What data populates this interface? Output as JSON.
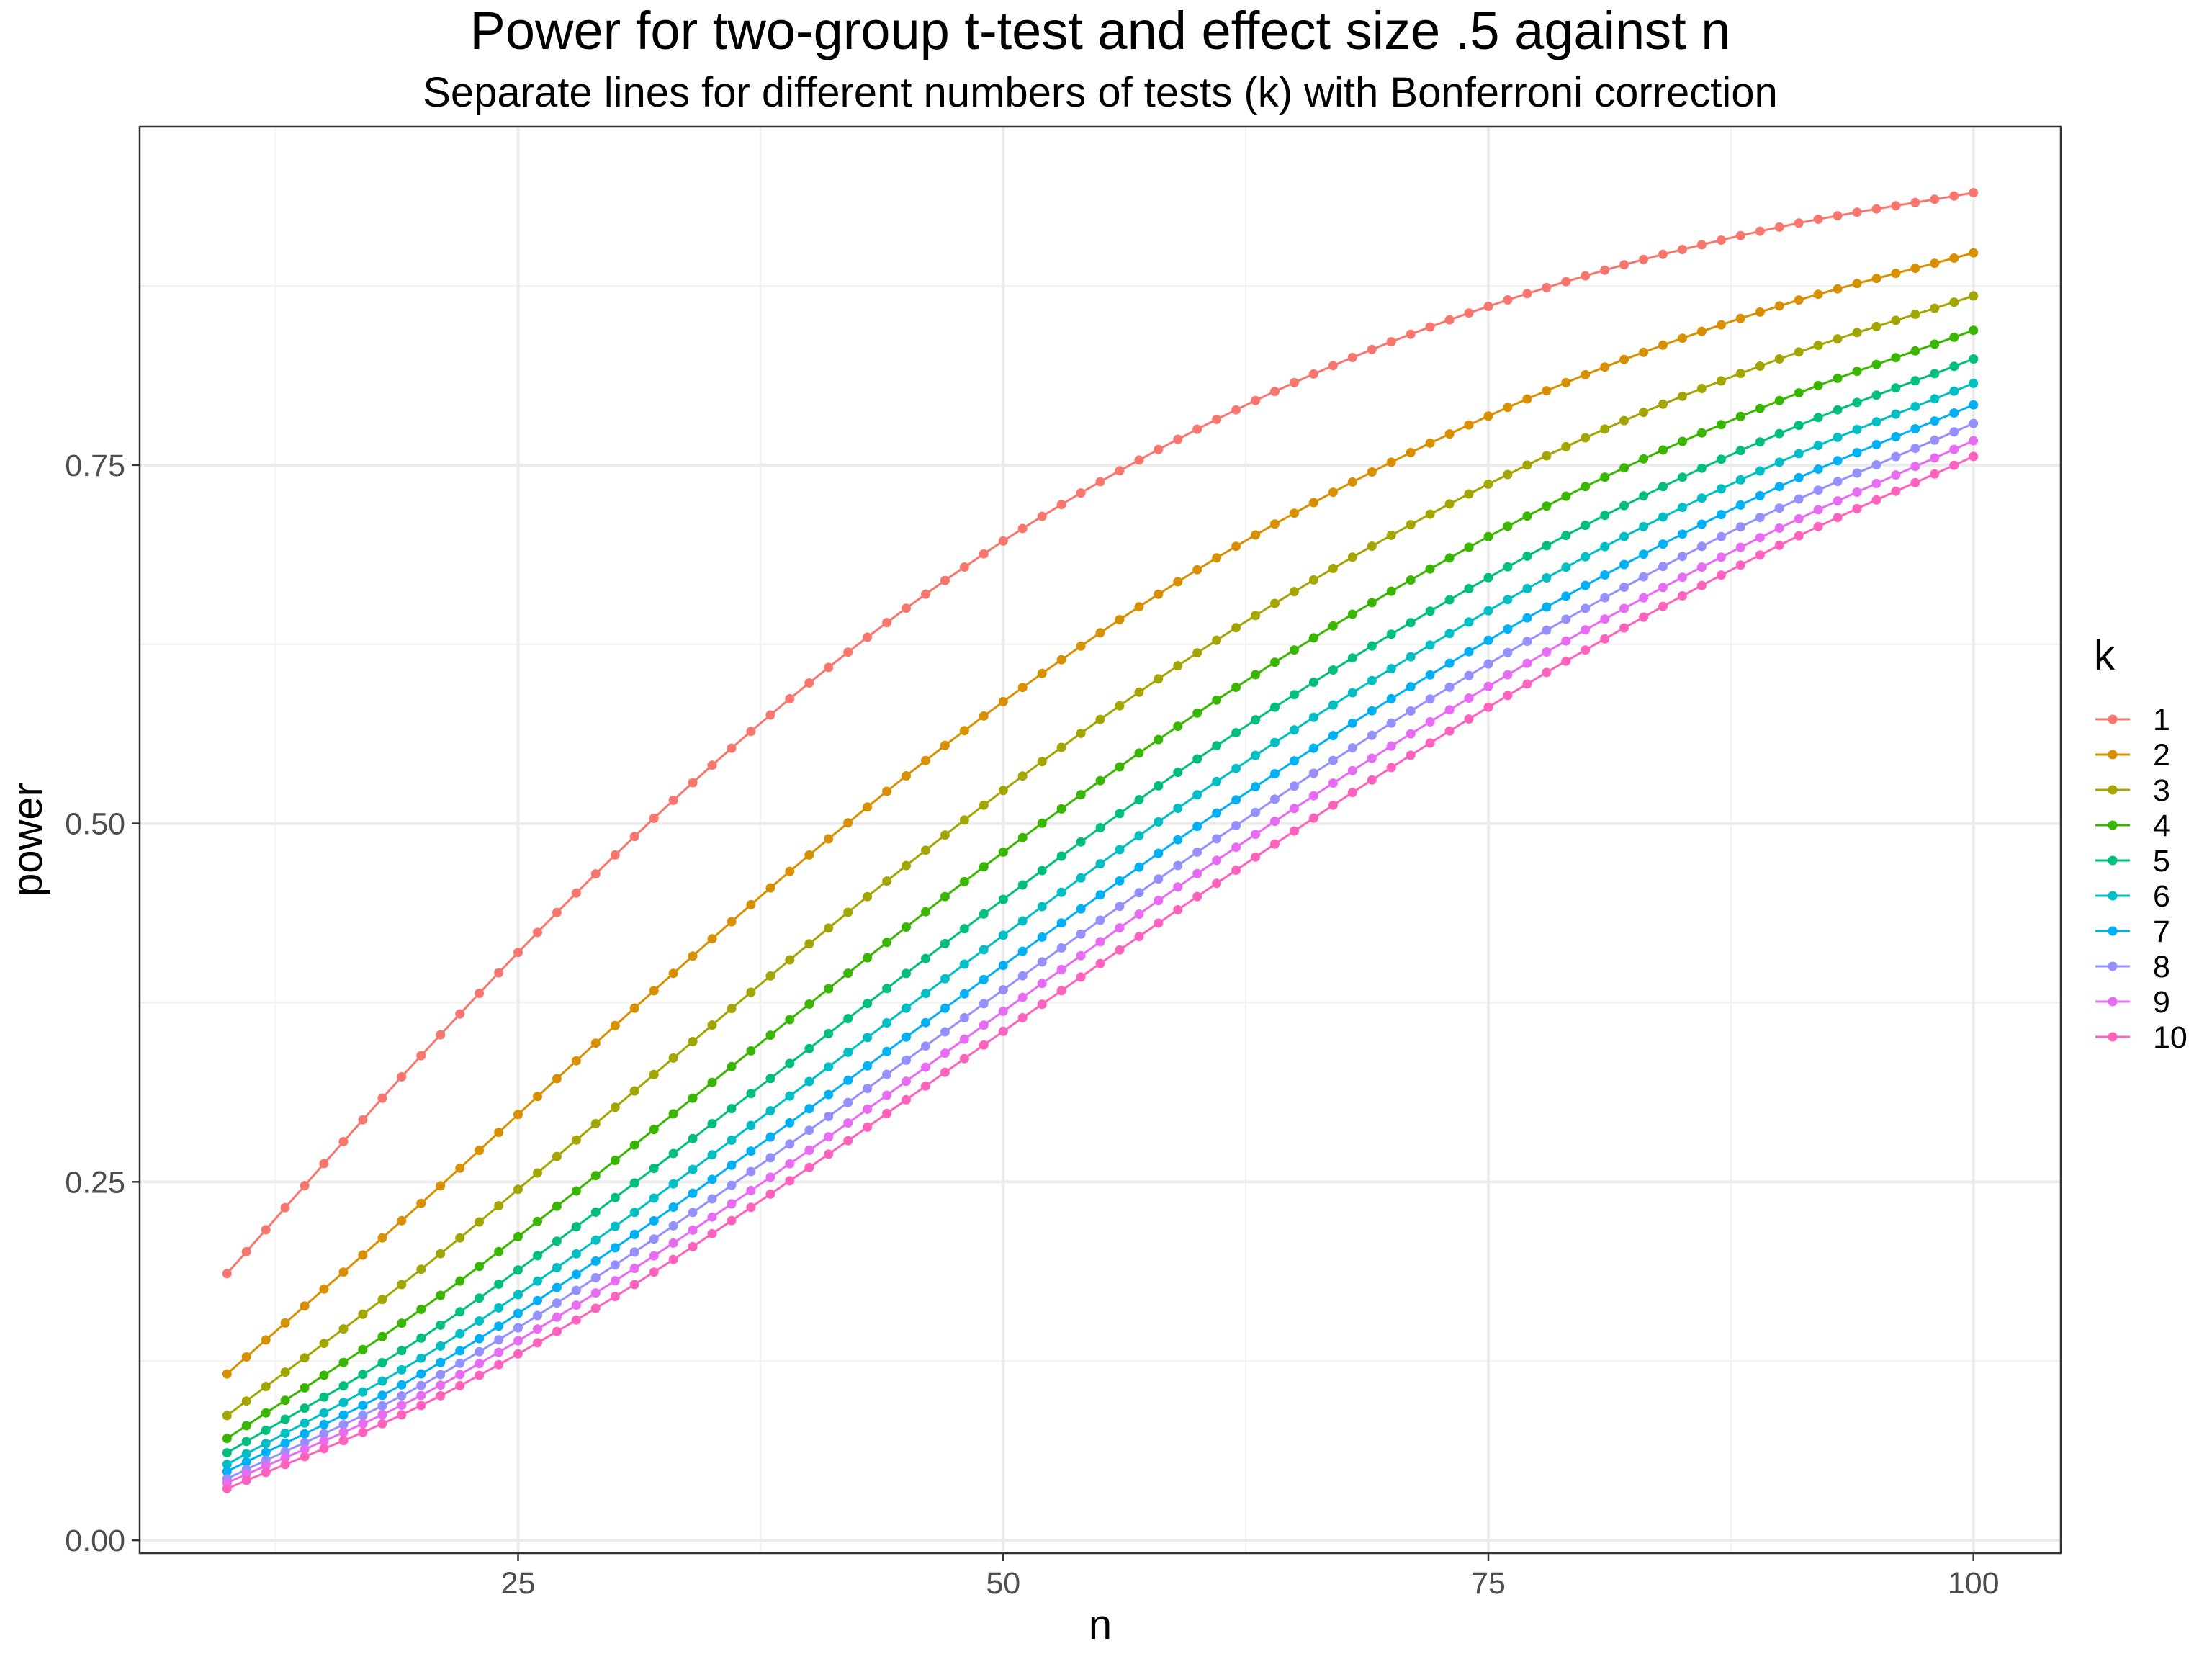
{
  "chart_data": {
    "type": "line",
    "title": "Power for two-group t-test and effect size .5 against n",
    "subtitle": "Separate lines for different numbers of tests (k) with Bonferroni correction",
    "xlabel": "n",
    "ylabel": "power",
    "xlim": [
      5.5,
      104.5
    ],
    "ylim": [
      -0.009,
      0.986
    ],
    "x_ticks": [
      25,
      50,
      75,
      100
    ],
    "x_tick_labels": [
      "25",
      "50",
      "75",
      "100"
    ],
    "y_ticks": [
      0,
      0.25,
      0.5,
      0.75
    ],
    "y_tick_labels": [
      "0.00",
      "0.25",
      "0.50",
      "0.75"
    ],
    "x_minor": [
      12.5,
      37.5,
      62.5,
      87.5
    ],
    "y_minor": [
      0.125,
      0.375,
      0.625,
      0.875
    ],
    "grid": true,
    "markers": "points at every integer n from 10 to 100",
    "x_points": {
      "start": 10,
      "end": 100,
      "step": 1
    },
    "x": [
      10,
      20,
      30,
      40,
      50,
      60,
      70,
      80,
      90,
      100
    ],
    "legend": {
      "title": "k",
      "position": "right"
    },
    "series": [
      {
        "name": "1",
        "color": "#F8766D",
        "values": [
          0.186,
          0.338,
          0.478,
          0.598,
          0.697,
          0.775,
          0.836,
          0.882,
          0.916,
          0.94
        ]
      },
      {
        "name": "2",
        "color": "#D89000",
        "values": [
          0.116,
          0.235,
          0.359,
          0.478,
          0.585,
          0.677,
          0.752,
          0.813,
          0.861,
          0.898
        ]
      },
      {
        "name": "3",
        "color": "#A3A500",
        "values": [
          0.087,
          0.189,
          0.302,
          0.416,
          0.523,
          0.619,
          0.701,
          0.769,
          0.824,
          0.868
        ]
      },
      {
        "name": "4",
        "color": "#39B600",
        "values": [
          0.071,
          0.161,
          0.265,
          0.374,
          0.48,
          0.577,
          0.662,
          0.735,
          0.795,
          0.844
        ]
      },
      {
        "name": "5",
        "color": "#00BF7D",
        "values": [
          0.061,
          0.141,
          0.239,
          0.343,
          0.447,
          0.545,
          0.632,
          0.708,
          0.772,
          0.824
        ]
      },
      {
        "name": "6",
        "color": "#00BFC4",
        "values": [
          0.053,
          0.127,
          0.219,
          0.32,
          0.422,
          0.52,
          0.608,
          0.686,
          0.752,
          0.807
        ]
      },
      {
        "name": "7",
        "color": "#00B0F6",
        "values": [
          0.048,
          0.116,
          0.204,
          0.301,
          0.401,
          0.498,
          0.587,
          0.666,
          0.735,
          0.792
        ]
      },
      {
        "name": "8",
        "color": "#9590FF",
        "values": [
          0.043,
          0.108,
          0.192,
          0.286,
          0.384,
          0.48,
          0.57,
          0.65,
          0.72,
          0.779
        ]
      },
      {
        "name": "9",
        "color": "#E76BF3",
        "values": [
          0.04,
          0.101,
          0.181,
          0.272,
          0.369,
          0.465,
          0.554,
          0.635,
          0.706,
          0.767
        ]
      },
      {
        "name": "10",
        "color": "#FF62BC",
        "values": [
          0.036,
          0.094,
          0.17,
          0.26,
          0.355,
          0.449,
          0.539,
          0.621,
          0.694,
          0.756
        ]
      }
    ]
  }
}
